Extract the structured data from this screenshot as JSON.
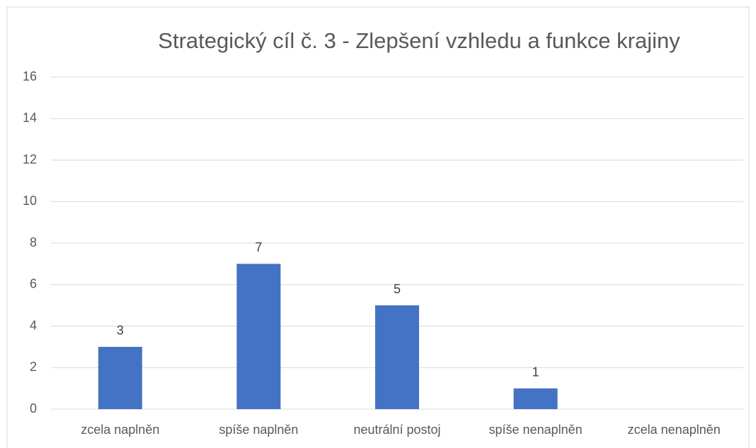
{
  "chart_data": {
    "type": "bar",
    "title": "Strategický cíl č. 3 - Zlepšení vzhledu a funkce krajiny",
    "categories": [
      "zcela naplněn",
      "spíše naplněn",
      "neutrální postoj",
      "spíše nenaplněn",
      "zcela nenaplněn"
    ],
    "values": [
      3,
      7,
      5,
      1,
      null
    ],
    "color": "#4472c4",
    "ylim": [
      0,
      16
    ],
    "yticks": [
      0,
      2,
      4,
      6,
      8,
      10,
      12,
      14,
      16
    ],
    "grid": true
  }
}
